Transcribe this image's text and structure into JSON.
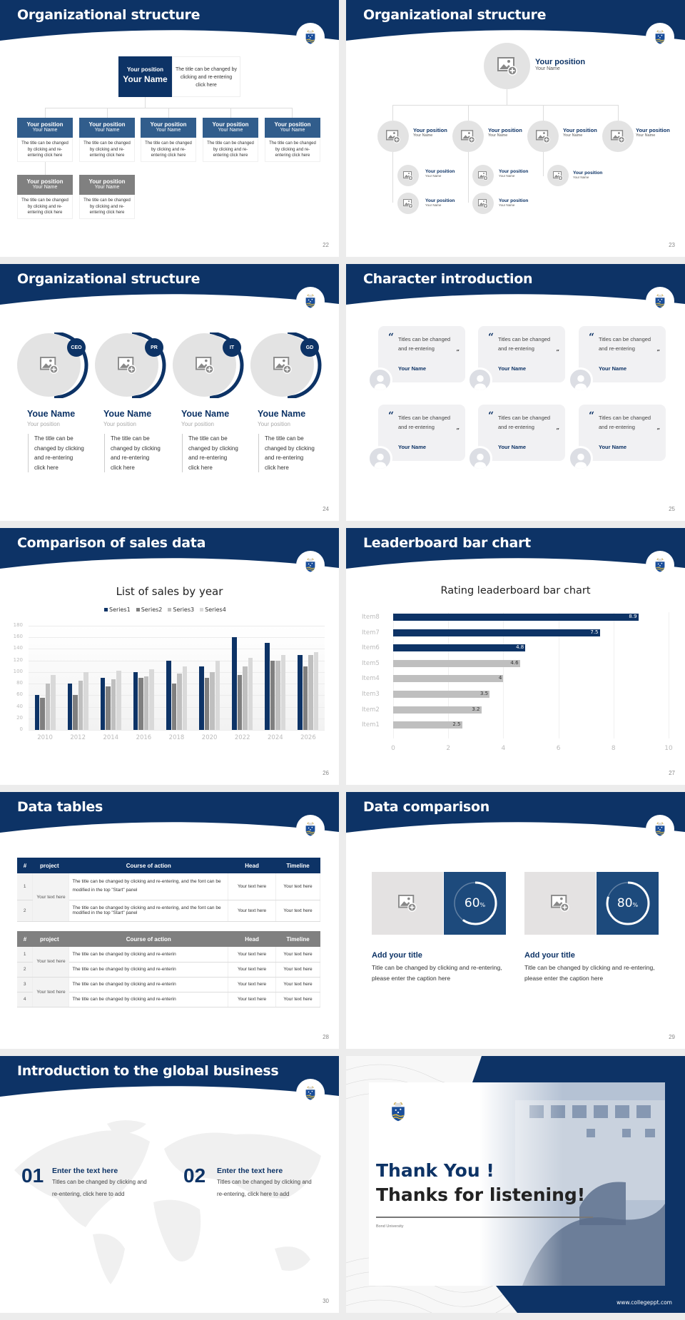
{
  "colors": {
    "navy": "#0d3366",
    "bluecard": "#315d8c",
    "grey": "#808080",
    "light": "#e3e3e3"
  },
  "slides": {
    "s22": {
      "title": "Organizational structure",
      "page": "22",
      "top": {
        "position": "Your position",
        "name": "Your Name",
        "desc": "The title can be changed by clicking and re-entering click here"
      },
      "cards": [
        {
          "position": "Your position",
          "name": "Your Name",
          "desc": "The title can be changed by clicking and re-entering click here"
        },
        {
          "position": "Your position",
          "name": "Your Name",
          "desc": "The title can be changed by clicking and re-entering click here"
        },
        {
          "position": "Your position",
          "name": "Your Name",
          "desc": "The title can be changed by clicking and re-entering click here"
        },
        {
          "position": "Your position",
          "name": "Your Name",
          "desc": "The title can be changed by clicking and re-entering click here"
        },
        {
          "position": "Your position",
          "name": "Your Name",
          "desc": "The title can be changed by clicking and re-entering click here"
        },
        {
          "position": "Your position",
          "name": "Your Name",
          "desc": "The title can be changed by clicking and re-entering click here"
        },
        {
          "position": "Your position",
          "name": "Your Name",
          "desc": "The title can be changed by clicking and re-entering click here"
        }
      ]
    },
    "s23": {
      "title": "Organizational structure",
      "page": "23",
      "top": {
        "position": "Your position",
        "name": "Your Name"
      },
      "level2": [
        {
          "position": "Your position",
          "name": "Your Name"
        },
        {
          "position": "Your position",
          "name": "Your Name"
        },
        {
          "position": "Your position",
          "name": "Your Name"
        },
        {
          "position": "Your position",
          "name": "Your Name"
        }
      ],
      "level3": [
        {
          "position": "Your position",
          "name": "Your Name"
        },
        {
          "position": "Your position",
          "name": "Your Name"
        },
        {
          "position": "Your position",
          "name": "Your Name"
        },
        {
          "position": "Your position",
          "name": "Your Name"
        },
        {
          "position": "Your position",
          "name": "Your Name"
        }
      ]
    },
    "s24": {
      "title": "Organizational structure",
      "page": "24",
      "people": [
        {
          "badge": "CEO",
          "name": "Youe Name",
          "position": "Your position",
          "desc": "The title can be changed by clicking and re-entering click here"
        },
        {
          "badge": "PR",
          "name": "Youe Name",
          "position": "Your position",
          "desc": "The title can be changed by clicking and re-entering click here"
        },
        {
          "badge": "IT",
          "name": "Youe Name",
          "position": "Your position",
          "desc": "The title can be changed by clicking and re-entering click here"
        },
        {
          "badge": "GD",
          "name": "Youe Name",
          "position": "Your position",
          "desc": "The title can be changed by clicking and re-entering click here"
        }
      ]
    },
    "s25": {
      "title": "Character introduction",
      "page": "25",
      "quotes": [
        {
          "text": "Titles can be changed and re-entering",
          "name": "Your Name"
        },
        {
          "text": "Titles can be changed and re-entering",
          "name": "Your Name"
        },
        {
          "text": "Titles can be changed and re-entering",
          "name": "Your Name"
        },
        {
          "text": "Titles can be changed and re-entering",
          "name": "Your Name"
        },
        {
          "text": "Titles can be changed and re-entering",
          "name": "Your Name"
        },
        {
          "text": "Titles can be changed and re-entering",
          "name": "Your Name"
        }
      ],
      "open_quote": "“",
      "close_quote": "”"
    },
    "s26": {
      "title": "Comparison of sales data",
      "page": "26"
    },
    "s27": {
      "title": "Leaderboard bar chart",
      "page": "27"
    },
    "s28": {
      "title": "Data tables",
      "page": "28",
      "headers": [
        "#",
        "project",
        "Course of action",
        "Head",
        "Timeline"
      ],
      "table1": {
        "project": "Your text here",
        "rows": [
          {
            "num": "1",
            "action": "The title can be changed by clicking and re-entering, and the font can be modified in the top \"Start\" panel",
            "head": "Your text here",
            "timeline": "Your text here"
          },
          {
            "num": "2",
            "action": "The title can be changed by clicking and re-entering, and the font can be modified in the top \"Start\" panel",
            "head": "Your text here",
            "timeline": "Your text here"
          }
        ]
      },
      "table2": {
        "projects": [
          "Your text here",
          "Your text here"
        ],
        "rows": [
          {
            "num": "1",
            "action": "The title can be changed by clicking and re-enterin",
            "head": "Your text here",
            "timeline": "Your text here"
          },
          {
            "num": "2",
            "action": "The title can be changed by clicking and re-enterin",
            "head": "Your text here",
            "timeline": "Your text here"
          },
          {
            "num": "3",
            "action": "The title can be changed by clicking and re-enterin",
            "head": "Your text here",
            "timeline": "Your text here"
          },
          {
            "num": "4",
            "action": "The title can be changed by clicking and re-enterin",
            "head": "Your text here",
            "timeline": "Your text here"
          }
        ]
      }
    },
    "s29": {
      "title": "Data comparison",
      "page": "29",
      "items": [
        {
          "percent": "60",
          "unit": "%",
          "title": "Add your title",
          "desc": "Title can be changed by clicking and re-entering, please enter the caption here"
        },
        {
          "percent": "80",
          "unit": "%",
          "title": "Add your title",
          "desc": "Title can be changed by clicking and re-entering, please enter the caption here"
        }
      ]
    },
    "s30": {
      "title": "Introduction to the global business",
      "page": "30",
      "items": [
        {
          "num": "01",
          "title": "Enter the text here",
          "desc": "Titles can be changed by clicking and re-entering, click here to add"
        },
        {
          "num": "02",
          "title": "Enter the text here",
          "desc": "Titles can be changed by clicking and re-entering, click here to add"
        }
      ]
    },
    "s31": {
      "line1": "Thank You !",
      "line2": "Thanks for listening!",
      "university": "Bond University",
      "url": "www.collegeppt.com"
    }
  },
  "chart_data": [
    {
      "type": "bar",
      "title": "List of sales by year",
      "categories": [
        "2010",
        "2012",
        "2014",
        "2016",
        "2018",
        "2020",
        "2022",
        "2024",
        "2026"
      ],
      "series": [
        {
          "name": "Series1",
          "color": "#0d3366",
          "values": [
            60,
            80,
            90,
            100,
            120,
            110,
            160,
            150,
            130
          ]
        },
        {
          "name": "Series2",
          "color": "#7f7f7f",
          "values": [
            55,
            60,
            75,
            90,
            80,
            90,
            95,
            120,
            110
          ]
        },
        {
          "name": "Series3",
          "color": "#bfbfbf",
          "values": [
            80,
            85,
            88,
            92,
            98,
            100,
            110,
            120,
            130
          ]
        },
        {
          "name": "Series4",
          "color": "#d9d9d9",
          "values": [
            95,
            100,
            102,
            105,
            110,
            120,
            125,
            130,
            135
          ]
        }
      ],
      "xlabel": "",
      "ylabel": "",
      "ylim": [
        0,
        180
      ],
      "yticks": [
        "0",
        "20",
        "40",
        "60",
        "80",
        "100",
        "120",
        "140",
        "160",
        "180"
      ],
      "grid": true,
      "legend_position": "top"
    },
    {
      "type": "bar",
      "orientation": "horizontal",
      "title": "Rating leaderboard bar chart",
      "categories": [
        "Item8",
        "Item7",
        "Item6",
        "Item5",
        "Item4",
        "Item3",
        "Item2",
        "Item1"
      ],
      "values": [
        8.9,
        7.5,
        4.8,
        4.6,
        4,
        3.5,
        3.2,
        2.5
      ],
      "labels": [
        "8.9",
        "7.5",
        "4.8",
        "4.6",
        "4",
        "3.5",
        "3.2",
        "2.5"
      ],
      "highlight_color": "#0d3366",
      "base_color": "#bfbfbf",
      "xlim": [
        0,
        10
      ],
      "xticks": [
        "0",
        "2",
        "4",
        "6",
        "8",
        "10"
      ],
      "grid": true
    }
  ]
}
